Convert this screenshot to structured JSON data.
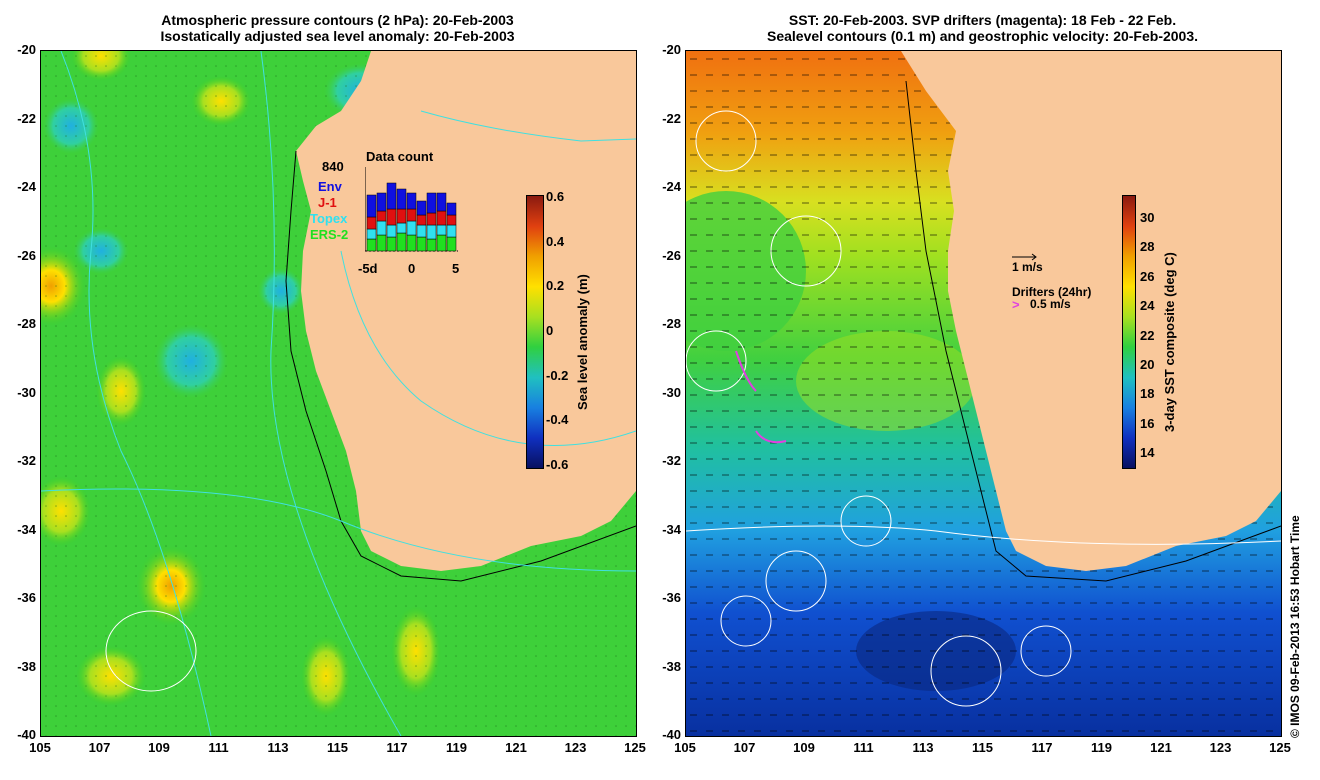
{
  "left": {
    "title_line1": "Atmospheric pressure contours (2 hPa): 20-Feb-2003",
    "title_line2": "Isostatically adjusted sea level anomaly: 20-Feb-2003",
    "y_ticks": [
      "-20",
      "-22",
      "-24",
      "-26",
      "-28",
      "-30",
      "-32",
      "-34",
      "-36",
      "-38",
      "-40"
    ],
    "x_ticks": [
      "105",
      "107",
      "109",
      "111",
      "113",
      "115",
      "117",
      "119",
      "121",
      "123",
      "125"
    ],
    "colorbar": {
      "title": "Sea level anomaly (m)",
      "ticks": [
        "0.6",
        "0.4",
        "0.2",
        "0",
        "-0.2",
        "-0.4",
        "-0.6"
      ]
    },
    "inset": {
      "count": "840",
      "title": "Data count",
      "series": [
        {
          "name": "Env",
          "color": "#1010e0"
        },
        {
          "name": "J-1",
          "color": "#e01010"
        },
        {
          "name": "Topex",
          "color": "#30e0f0"
        },
        {
          "name": "ERS-2",
          "color": "#20e020"
        }
      ],
      "x_ticks": [
        "-5d",
        "0",
        "5"
      ]
    }
  },
  "right": {
    "title_line1": "SST: 20-Feb-2003. SVP drifters (magenta): 18 Feb - 22 Feb.",
    "title_line2": "Sealevel contours (0.1 m) and geostrophic velocity: 20-Feb-2003.",
    "y_ticks": [
      "-20",
      "-22",
      "-24",
      "-26",
      "-28",
      "-30",
      "-32",
      "-34",
      "-36",
      "-38",
      "-40"
    ],
    "x_ticks": [
      "105",
      "107",
      "109",
      "111",
      "113",
      "115",
      "117",
      "119",
      "121",
      "123",
      "125"
    ],
    "colorbar": {
      "title": "3-day SST composite (deg C)",
      "ticks": [
        "30",
        "28",
        "26",
        "24",
        "22",
        "20",
        "18",
        "16",
        "14"
      ]
    },
    "velocity_scale": "1 m/s",
    "drifters_label": "Drifters (24hr)",
    "drifters_scale": "0.5 m/s"
  },
  "copyright": "© IMOS 09-Feb-2013 16:53 Hobart Time",
  "colors": {
    "land": "#f9c89b",
    "coast_contour": "#000000",
    "pressure_contour": "#40e0e0",
    "drifter": "#e040e0"
  }
}
